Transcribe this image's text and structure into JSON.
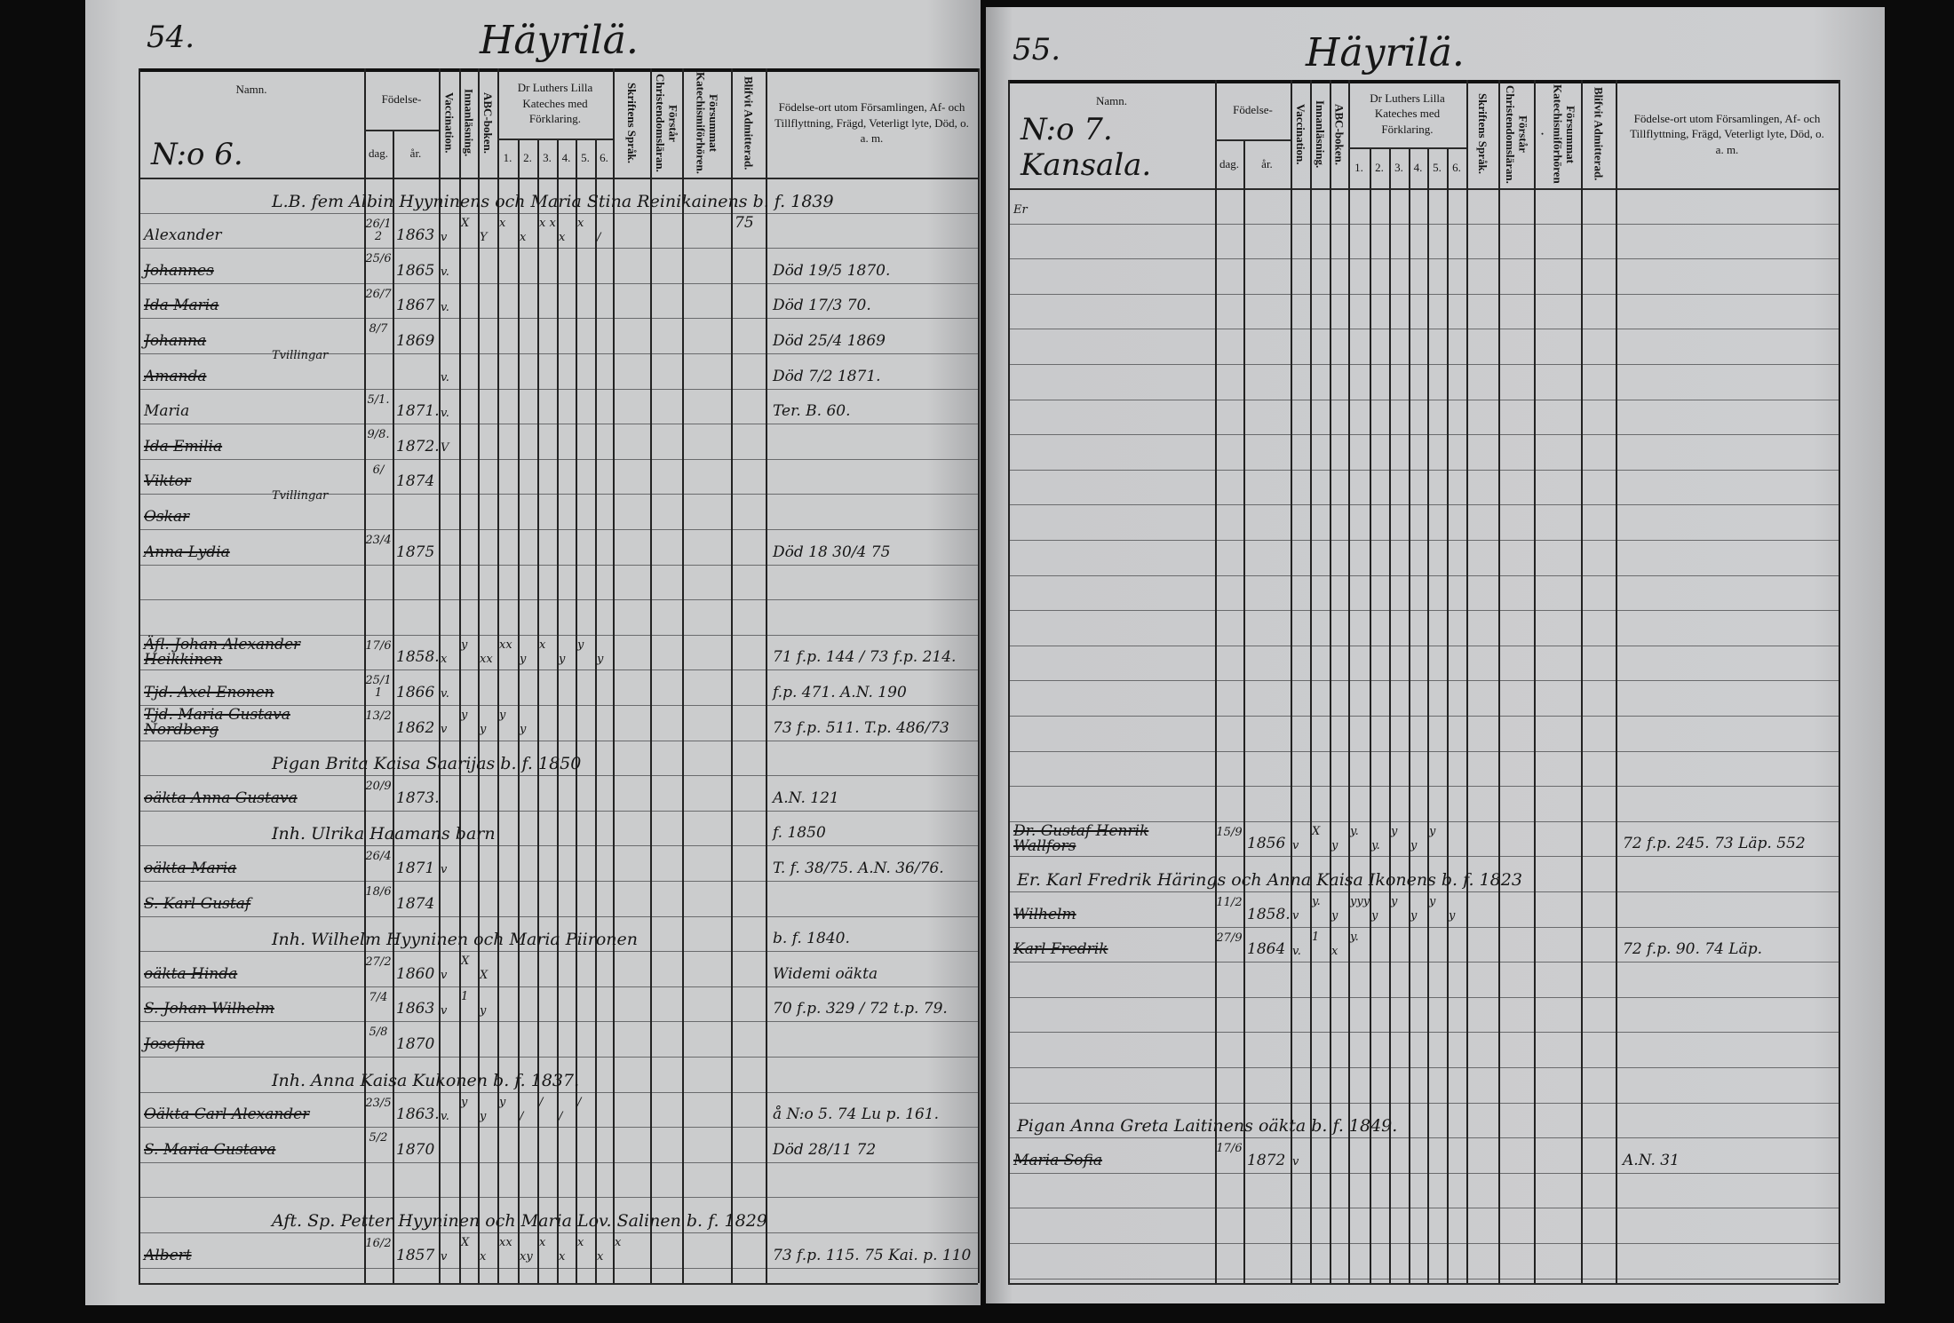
{
  "colors": {
    "background": "#0b0b0b",
    "paper": "#c8c9cb",
    "ink": "#161616"
  },
  "headers": {
    "namn": "Namn.",
    "fodelse": "Födelse-",
    "dag": "dag.",
    "ar": "år.",
    "vaccination": "Vaccination.",
    "innanlasning": "Innanläsning.",
    "abc": "ABC-boken.",
    "katekes": "Dr Luthers Lilla Kateches med Förklaring.",
    "kat_nums": [
      "1.",
      "2.",
      "3.",
      "4.",
      "5.",
      "6."
    ],
    "skrift": "Skriftens Språk.",
    "forstar": "Förstår Christendomsläran.",
    "forsummat": "Försummat Katechismiförhören.",
    "blifvit": "Blifvit Admitterad.",
    "fodelseort": "Födelse-ort utom Församlingen, Af- och Tillflyttning, Frägd, Veterligt lyte, Död, o. a. m."
  },
  "left": {
    "page_number": "54.",
    "village": "Häyrilä.",
    "household": "N:o 6.",
    "entries": [
      {
        "family": "L.B. fem Albin Hyyninens och Maria Stina Reinikainens b. f. 1839"
      },
      {
        "name": "Alexander",
        "dag": "26/12",
        "ar": "1863",
        "marks": [
          "v",
          "X",
          "Y",
          "x",
          "x",
          "x x",
          "x",
          "x",
          "/",
          "",
          "",
          "",
          ""
        ],
        "blifvit": "75",
        "note": ""
      },
      {
        "name": "Johannes",
        "struck": true,
        "dag": "25/6",
        "ar": "1865",
        "marks": [
          "v.",
          "",
          "",
          "",
          "",
          "",
          "",
          "",
          "",
          "",
          "",
          "",
          ""
        ],
        "note": "Död 19/5 1870."
      },
      {
        "name": "Ida Maria",
        "struck": true,
        "dag": "26/7",
        "ar": "1867",
        "marks": [
          "v.",
          "",
          "",
          "",
          "",
          "",
          "",
          "",
          "",
          "",
          "",
          "",
          ""
        ],
        "note": "Död 17/3 70."
      },
      {
        "name": "Johanna",
        "struck": true,
        "aside": "Tvillingar",
        "dag": "8/7",
        "ar": "1869",
        "marks": [
          "",
          "",
          "",
          "",
          "",
          "",
          "",
          "",
          "",
          "",
          "",
          "",
          ""
        ],
        "note": "Död 25/4 1869"
      },
      {
        "name": "Amanda",
        "struck": true,
        "marks": [
          "v.",
          "",
          "",
          "",
          "",
          "",
          "",
          "",
          "",
          "",
          "",
          "",
          ""
        ],
        "note": "Död 7/2 1871."
      },
      {
        "name": "Maria",
        "dag": "5/1.",
        "ar": "1871.",
        "marks": [
          "v.",
          "",
          "",
          "",
          "",
          "",
          "",
          "",
          "",
          "",
          "",
          "",
          ""
        ],
        "note": "Ter. B. 60."
      },
      {
        "name": "Ida Emilia",
        "struck": true,
        "dag": "9/8.",
        "ar": "1872.",
        "marks": [
          "V",
          "",
          "",
          "",
          "",
          "",
          "",
          "",
          "",
          "",
          "",
          "",
          ""
        ],
        "note": ""
      },
      {
        "name": "Viktor",
        "struck": true,
        "aside": "Tvillingar",
        "dag": "6/",
        "ar": "1874",
        "marks": [
          "",
          "",
          "",
          "",
          "",
          "",
          "",
          "",
          "",
          "",
          "",
          "",
          ""
        ],
        "note": ""
      },
      {
        "name": "Oskar",
        "struck": true,
        "marks": [
          "",
          "",
          "",
          "",
          "",
          "",
          "",
          "",
          "",
          "",
          "",
          "",
          ""
        ],
        "note": ""
      },
      {
        "name": "Anna Lydia",
        "struck": true,
        "dag": "23/4",
        "ar": "1875",
        "marks": [
          "",
          "",
          "",
          "",
          "",
          "",
          "",
          "",
          "",
          "",
          "",
          "",
          ""
        ],
        "note": "Död 18 30/4 75"
      },
      {
        "name": "Äfl. Johan Alexander Heikkinen",
        "struck": true,
        "dag": "17/6",
        "ar": "1858.",
        "marks": [
          "x",
          "y",
          "xx",
          "xx",
          "y",
          "x",
          "y",
          "y",
          "y",
          "",
          "",
          "",
          ""
        ],
        "note": "71 f.p. 144 / 73 f.p. 214."
      },
      {
        "name": "Tjd. Axel Enonen",
        "struck": true,
        "dag": "25/11",
        "ar": "1866",
        "marks": [
          "v.",
          "",
          "",
          "",
          "",
          "",
          "",
          "",
          "",
          "",
          "",
          "",
          ""
        ],
        "note": "f.p. 471. A.N. 190"
      },
      {
        "name": "Tjd. Maria Gustava Nordberg",
        "struck": true,
        "dag": "13/2",
        "ar": "1862",
        "marks": [
          "v",
          "y",
          "y",
          "y",
          "y",
          "",
          "",
          "",
          "",
          "",
          "",
          "",
          ""
        ],
        "note": "73 f.p. 511. T.p. 486/73"
      },
      {
        "family": "Pigan Brita Kaisa Saarijas b. f. 1850"
      },
      {
        "name": "oäkta Anna Gustava",
        "struck": true,
        "dag": "20/9",
        "ar": "1873.",
        "marks": [
          "",
          "",
          "",
          "",
          "",
          "",
          "",
          "",
          "",
          "",
          "",
          "",
          ""
        ],
        "note": "A.N. 121"
      },
      {
        "family": "Inh. Ulrika Haamans barn",
        "note": "f. 1850"
      },
      {
        "name": "oäkta Maria",
        "struck": true,
        "dag": "26/4",
        "ar": "1871",
        "marks": [
          "v",
          "",
          "",
          "",
          "",
          "",
          "",
          "",
          "",
          "",
          "",
          "",
          ""
        ],
        "note": "T. f. 38/75. A.N. 36/76."
      },
      {
        "name": "S. Karl Gustaf",
        "struck": true,
        "dag": "18/6",
        "ar": "1874",
        "marks": [
          "",
          "",
          "",
          "",
          "",
          "",
          "",
          "",
          "",
          "",
          "",
          "",
          ""
        ],
        "note": ""
      },
      {
        "family": "Inh. Wilhelm Hyyninen och Maria Piironen",
        "note": "b. f. 1840."
      },
      {
        "name": "oäkta Hinda",
        "struck": true,
        "dag": "27/2",
        "ar": "1860",
        "marks": [
          "v",
          "X",
          "X",
          "",
          "",
          "",
          "",
          "",
          "",
          "",
          "",
          "",
          ""
        ],
        "note": "Widemi oäkta"
      },
      {
        "name": "S. Johan Wilhelm",
        "struck": true,
        "dag": "7/4",
        "ar": "1863",
        "marks": [
          "v",
          "1",
          "y",
          "",
          "",
          "",
          "",
          "",
          "",
          "",
          "",
          "",
          ""
        ],
        "note": "70 f.p. 329 / 72 t.p. 79."
      },
      {
        "name": "Josefina",
        "struck": true,
        "dag": "5/8",
        "ar": "1870",
        "marks": [
          "",
          "",
          "",
          "",
          "",
          "",
          "",
          "",
          "",
          "",
          "",
          "",
          ""
        ],
        "note": ""
      },
      {
        "family": "Inh. Anna Kaisa Kukonen b. f. 1837."
      },
      {
        "name": "Oäkta Carl Alexander",
        "struck": true,
        "dag": "23/5",
        "ar": "1863.",
        "marks": [
          "v.",
          "y",
          "y",
          "y",
          "/",
          "/",
          "/",
          "/",
          "",
          "",
          "",
          "",
          ""
        ],
        "note": "å N:o 5. 74 Lu p. 161."
      },
      {
        "name": "S. Maria Gustava",
        "struck": true,
        "dag": "5/2",
        "ar": "1870",
        "marks": [
          "",
          "",
          "",
          "",
          "",
          "",
          "",
          "",
          "",
          "",
          "",
          "",
          ""
        ],
        "note": "Död 28/11 72"
      },
      {
        "family": "Aft. Sp. Petter Hyyninen och Maria Lov. Salinen b. f. 1829"
      },
      {
        "name": "Albert",
        "struck": true,
        "dag": "16/2",
        "ar": "1857",
        "marks": [
          "v",
          "X",
          "x",
          "xx",
          "xy",
          "x",
          "x",
          "x",
          "x",
          "x",
          "",
          "",
          ""
        ],
        "note": "73 f.p. 115. 75 Kai. p. 110"
      }
    ]
  },
  "right": {
    "page_number": "55.",
    "village": "Häyrilä.",
    "household": "N:o 7. Kansala.",
    "entries": [
      {
        "name": "Er",
        "small": true,
        "marks": [
          "",
          "",
          "",
          "",
          "",
          "",
          "",
          "",
          "",
          "",
          "",
          "",
          ""
        ],
        "note": ""
      },
      {
        "name": "Dr. Gustaf Henrik Wallfors",
        "struck": true,
        "dag": "15/9",
        "ar": "1856",
        "marks": [
          "v",
          "X",
          "y",
          "y.",
          "y.",
          "y",
          "y",
          "y",
          "",
          "",
          "",
          "",
          ""
        ],
        "note": "72 f.p. 245. 73 Läp. 552"
      },
      {
        "family": "Er. Karl Fredrik Härings och Anna Kaisa Ikonens b. f. 1823"
      },
      {
        "name": "Wilhelm",
        "struck": true,
        "dag": "11/2",
        "ar": "1858.",
        "marks": [
          "v",
          "y.",
          "y",
          "yyy",
          "y",
          "y",
          "y",
          "y",
          "y",
          "",
          "",
          "",
          ""
        ],
        "note": ""
      },
      {
        "name": "Karl Fredrik",
        "struck": true,
        "dag": "27/9",
        "ar": "1864",
        "marks": [
          "v.",
          "1",
          "x",
          "y.",
          "",
          "",
          "",
          "",
          "",
          "",
          "",
          "",
          ""
        ],
        "note": "72 f.p. 90. 74 Läp."
      },
      {
        "family": "Pigan Anna Greta Laitinens oäkta b. f. 1849."
      },
      {
        "name": "Maria Sofia",
        "struck": true,
        "dag": "17/6",
        "ar": "1872",
        "marks": [
          "v",
          "",
          "",
          "",
          "",
          "",
          "",
          "",
          "",
          "",
          "",
          "",
          ""
        ],
        "note": "A.N. 31"
      }
    ]
  }
}
